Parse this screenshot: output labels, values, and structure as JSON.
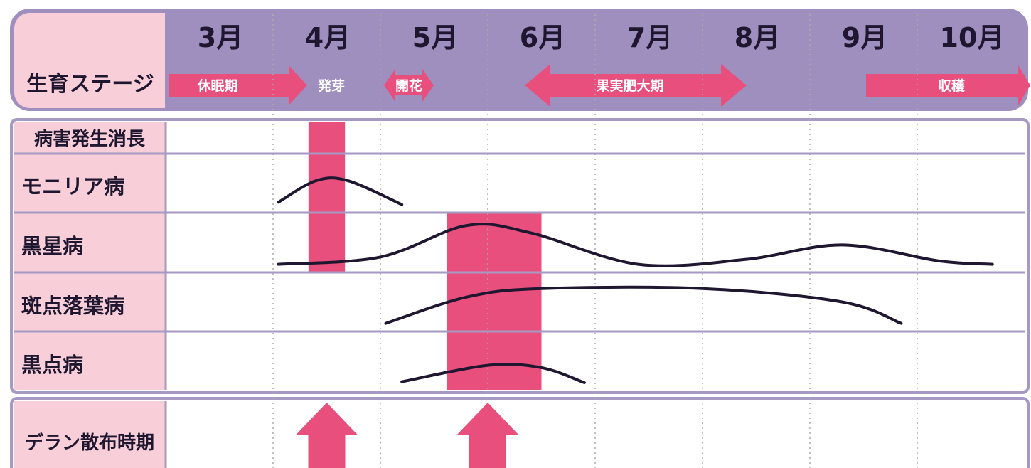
{
  "header": {
    "months": [
      "3月",
      "4月",
      "5月",
      "6月",
      "7月",
      "8月",
      "9月",
      "10月"
    ],
    "stage_label": "生育ステージ",
    "stages": [
      {
        "label": "休眠期",
        "start": 3.0,
        "end": 4.3,
        "arrow_left": false,
        "arrow_right": true
      },
      {
        "label": "発芽",
        "start": 4.3,
        "end": 5.0,
        "arrow_left": false,
        "arrow_right": false
      },
      {
        "label": "開花",
        "start": 5.05,
        "end": 5.5,
        "arrow_left": true,
        "arrow_right": true
      },
      {
        "label": "果実肥大期",
        "start": 6.35,
        "end": 8.4,
        "arrow_left": true,
        "arrow_right": true
      },
      {
        "label": "収穫",
        "start": 9.5,
        "end": 11.0,
        "arrow_left": false,
        "arrow_right": true
      }
    ]
  },
  "rows": {
    "timing_label": "病害発生消長",
    "diseases": [
      "モニリア病",
      "黒星病",
      "斑点落葉病",
      "黒点病"
    ],
    "spray_label": "デラン散布時期"
  },
  "colors": {
    "header_bg": "#9e8fbf",
    "label_bg": "#f8cfd9",
    "accent_pink": "#e84f7c",
    "curve": "#1f1730",
    "border": "#a69ac4",
    "grid": "#aaaaaa"
  },
  "chart_data": {
    "type": "timeline",
    "x_unit": "month",
    "x_range": [
      3,
      11
    ],
    "high_risk_periods": [
      {
        "start": 4.33,
        "end": 4.67,
        "rows": [
          "モニリア病",
          "黒星病"
        ]
      },
      {
        "start": 5.62,
        "end": 6.5,
        "rows": [
          "黒星病",
          "斑点落葉病",
          "黒点病"
        ]
      }
    ],
    "curves": [
      {
        "row": "モニリア病",
        "points": [
          [
            4.05,
            0.1
          ],
          [
            4.4,
            0.55
          ],
          [
            4.7,
            0.55
          ],
          [
            5.2,
            0.05
          ]
        ]
      },
      {
        "row": "黒星病",
        "points": [
          [
            4.05,
            0.05
          ],
          [
            5.0,
            0.2
          ],
          [
            5.8,
            0.85
          ],
          [
            6.4,
            0.7
          ],
          [
            7.4,
            0.05
          ],
          [
            8.4,
            0.15
          ],
          [
            9.3,
            0.45
          ],
          [
            10.2,
            0.12
          ],
          [
            10.7,
            0.05
          ]
        ]
      },
      {
        "row": "斑点落葉病",
        "points": [
          [
            5.05,
            0.05
          ],
          [
            5.8,
            0.6
          ],
          [
            6.5,
            0.78
          ],
          [
            8.0,
            0.78
          ],
          [
            9.3,
            0.5
          ],
          [
            9.85,
            0.05
          ]
        ]
      },
      {
        "row": "黒点病",
        "points": [
          [
            5.2,
            0.05
          ],
          [
            6.0,
            0.4
          ],
          [
            6.5,
            0.35
          ],
          [
            6.9,
            0.03
          ]
        ]
      }
    ],
    "spray_timing": [
      4.5,
      6.0
    ]
  }
}
